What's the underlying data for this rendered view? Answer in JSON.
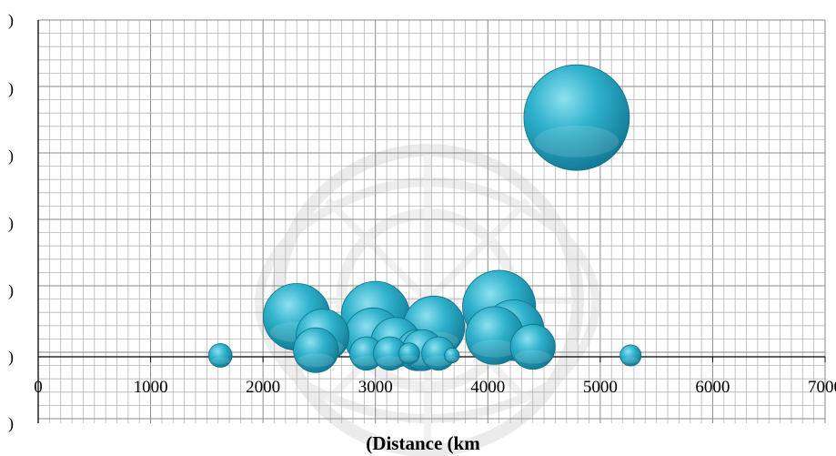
{
  "chart_data": {
    "type": "scatter",
    "subtype": "bubble",
    "xlabel": "(Distance (km",
    "x_ticks": [
      "0",
      "1000",
      "2000",
      "3000",
      "4000",
      "5000",
      "6000",
      "7000"
    ],
    "y_tick_labels": [
      ")",
      ")",
      ")",
      ")",
      ")",
      ")",
      ")"
    ],
    "xlim": [
      0,
      7000
    ],
    "grid": true,
    "bubble_color": "#2aa8c4",
    "series": [
      {
        "points": [
          {
            "x": 1620,
            "y": 0.02,
            "size": 0.05
          },
          {
            "x": 2300,
            "y": 0.6,
            "size": 0.4
          },
          {
            "x": 2530,
            "y": 0.32,
            "size": 0.25
          },
          {
            "x": 2470,
            "y": 0.1,
            "size": 0.18
          },
          {
            "x": 2920,
            "y": 0.05,
            "size": 0.1
          },
          {
            "x": 2980,
            "y": 0.3,
            "size": 0.3
          },
          {
            "x": 3000,
            "y": 0.62,
            "size": 0.42
          },
          {
            "x": 3180,
            "y": 0.22,
            "size": 0.22
          },
          {
            "x": 3130,
            "y": 0.05,
            "size": 0.1
          },
          {
            "x": 3300,
            "y": 0.05,
            "size": 0.04
          },
          {
            "x": 3370,
            "y": 0.1,
            "size": 0.15
          },
          {
            "x": 3420,
            "y": 0.1,
            "size": 0.15
          },
          {
            "x": 3520,
            "y": 0.45,
            "size": 0.34
          },
          {
            "x": 3560,
            "y": 0.05,
            "size": 0.1
          },
          {
            "x": 3680,
            "y": 0.02,
            "size": 0.02
          },
          {
            "x": 4060,
            "y": 0.32,
            "size": 0.3
          },
          {
            "x": 4100,
            "y": 0.75,
            "size": 0.48
          },
          {
            "x": 4230,
            "y": 0.4,
            "size": 0.33
          },
          {
            "x": 4400,
            "y": 0.15,
            "size": 0.18
          },
          {
            "x": 4790,
            "y": 3.6,
            "size": 1.0
          },
          {
            "x": 5270,
            "y": 0.02,
            "size": 0.04
          }
        ]
      }
    ]
  }
}
